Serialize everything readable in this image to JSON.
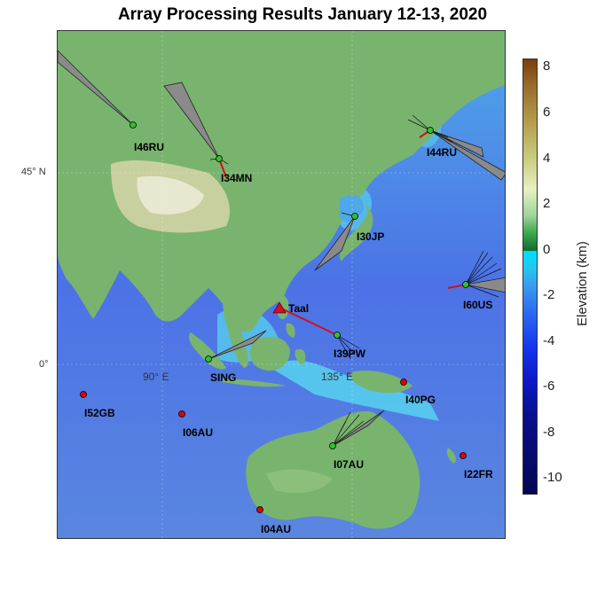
{
  "title": "Array Processing Results January 12-13, 2020",
  "map": {
    "lat_labels": [
      {
        "text": "45° N"
      },
      {
        "text": "0°"
      }
    ],
    "lon_labels": [
      {
        "text": "90° E"
      },
      {
        "text": "135° E"
      }
    ],
    "source": {
      "name": "Taal"
    },
    "stations": [
      {
        "name": "I46RU",
        "detection": true
      },
      {
        "name": "I34MN",
        "detection": true
      },
      {
        "name": "I44RU",
        "detection": true
      },
      {
        "name": "I30JP",
        "detection": true
      },
      {
        "name": "I60US",
        "detection": true
      },
      {
        "name": "I39PW",
        "detection": true
      },
      {
        "name": "SING",
        "detection": true
      },
      {
        "name": "I40PG",
        "detection": false
      },
      {
        "name": "I52GB",
        "detection": false
      },
      {
        "name": "I06AU",
        "detection": false
      },
      {
        "name": "I07AU",
        "detection": true
      },
      {
        "name": "I22FR",
        "detection": false
      },
      {
        "name": "I04AU",
        "detection": false
      }
    ]
  },
  "colorbar": {
    "label": "Elevation (km)",
    "ticks": [
      "8",
      "6",
      "4",
      "2",
      "0",
      "-2",
      "-4",
      "-6",
      "-8",
      "-10"
    ]
  },
  "colors": {
    "source": "#c8102e",
    "back_azimuth": "#d0101a",
    "station_off": "#e00000",
    "station_on": "#30c030"
  }
}
